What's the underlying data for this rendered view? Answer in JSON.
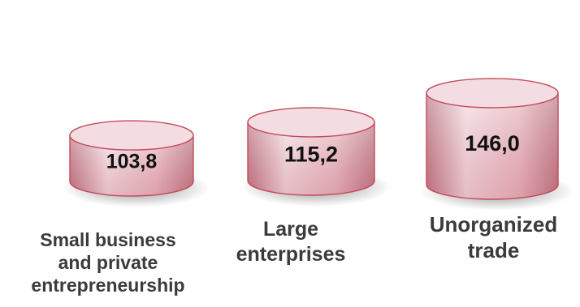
{
  "chart_data": {
    "type": "bar",
    "categories": [
      "Small business and private entrepreneurship",
      "Large enterprises",
      "Unorganized trade"
    ],
    "category_lines": [
      [
        "Small business",
        "and private",
        "entrepreneurship"
      ],
      [
        "Large",
        "enterprises"
      ],
      [
        "Unorganized",
        "trade"
      ]
    ],
    "values": [
      103.8,
      115.2,
      146.0
    ],
    "value_labels": [
      "103,8",
      "115,2",
      "146,0"
    ],
    "title": "",
    "xlabel": "",
    "ylabel": "",
    "bar_shape": "cylinder",
    "grid": false,
    "legend": "none",
    "colors": {
      "body_light": "#f2dfe3",
      "body_mid": "#e7b9c1",
      "body_dark": "#b9737f",
      "top_face": "#f4dde2",
      "outline": "#c44a5c",
      "shadow": "#8a8a8a"
    }
  }
}
